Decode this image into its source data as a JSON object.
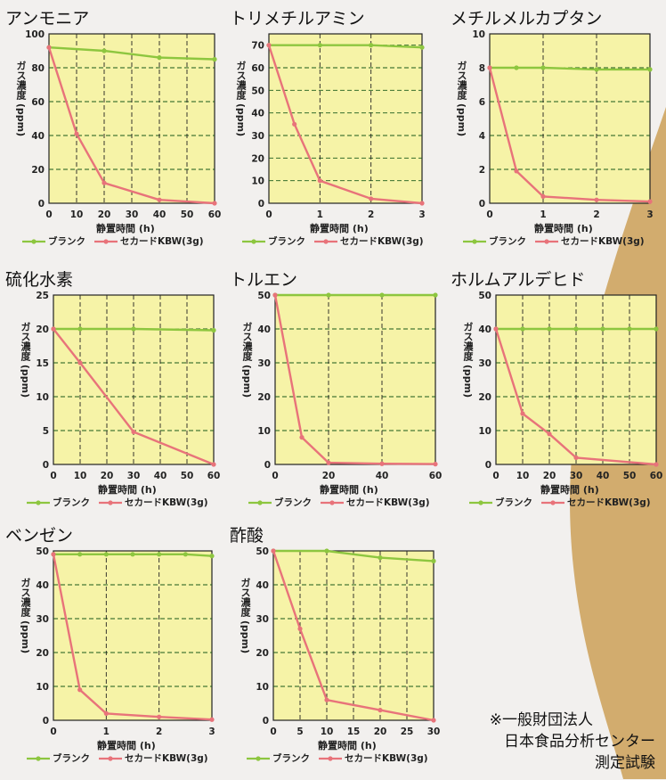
{
  "legend": {
    "blank": "ブランク",
    "product": "セカードKBW(3g)"
  },
  "colors": {
    "blank": "#8dc63f",
    "product": "#e8737a",
    "plot_bg": "#f6f3a7",
    "accent": "#d2ac6e"
  },
  "axis_labels": {
    "y": "ガス濃度 (ppm)",
    "x": "静置時間 (h)"
  },
  "note": {
    "line1": "※一般財団法人",
    "line2": "日本食品分析センター",
    "line3": "測定試験"
  },
  "chart_data": [
    {
      "type": "line",
      "title": "アンモニア",
      "xlabel": "静置時間 (h)",
      "ylabel": "ガス濃度 (ppm)",
      "xticks": [
        0,
        10,
        20,
        30,
        40,
        50,
        60
      ],
      "yticks": [
        0,
        20,
        40,
        60,
        80,
        100
      ],
      "xlim": [
        0,
        60
      ],
      "ylim": [
        0,
        100
      ],
      "series": [
        {
          "name": "ブランク",
          "x": [
            0,
            20,
            40,
            60
          ],
          "y": [
            92,
            90,
            86,
            85
          ]
        },
        {
          "name": "セカードKBW(3g)",
          "x": [
            0,
            10,
            20,
            40,
            60
          ],
          "y": [
            92,
            41,
            12,
            2,
            0
          ]
        }
      ]
    },
    {
      "type": "line",
      "title": "トリメチルアミン",
      "xlabel": "静置時間 (h)",
      "ylabel": "ガス濃度 (ppm)",
      "xticks": [
        0,
        1,
        2,
        3
      ],
      "yticks": [
        0,
        10,
        20,
        30,
        40,
        50,
        60,
        70
      ],
      "xlim": [
        0,
        3
      ],
      "ylim": [
        0,
        75
      ],
      "series": [
        {
          "name": "ブランク",
          "x": [
            0,
            1,
            2,
            3
          ],
          "y": [
            70,
            70,
            70,
            69
          ]
        },
        {
          "name": "セカードKBW(3g)",
          "x": [
            0,
            0.5,
            1,
            2,
            3
          ],
          "y": [
            70,
            35,
            10,
            2,
            0
          ]
        }
      ]
    },
    {
      "type": "line",
      "title": "メチルメルカプタン",
      "xlabel": "静置時間 (h)",
      "ylabel": "ガス濃度 (ppm)",
      "xticks": [
        0,
        1,
        2,
        3
      ],
      "yticks": [
        0,
        2,
        4,
        6,
        8,
        10
      ],
      "xlim": [
        0,
        3
      ],
      "ylim": [
        0,
        10
      ],
      "series": [
        {
          "name": "ブランク",
          "x": [
            0,
            0.5,
            1,
            2,
            3
          ],
          "y": [
            8,
            8,
            8,
            7.9,
            7.9
          ]
        },
        {
          "name": "セカードKBW(3g)",
          "x": [
            0,
            0.5,
            1,
            2,
            3
          ],
          "y": [
            8,
            1.9,
            0.4,
            0.2,
            0.1
          ]
        }
      ]
    },
    {
      "type": "line",
      "title": "硫化水素",
      "xlabel": "静置時間 (h)",
      "ylabel": "ガス濃度 (ppm)",
      "xticks": [
        0,
        10,
        20,
        30,
        40,
        50,
        60
      ],
      "yticks": [
        0,
        5,
        10,
        15,
        20,
        25
      ],
      "xlim": [
        0,
        60
      ],
      "ylim": [
        0,
        25
      ],
      "series": [
        {
          "name": "ブランク",
          "x": [
            0,
            10,
            30,
            60
          ],
          "y": [
            20,
            20,
            20,
            19.8
          ]
        },
        {
          "name": "セカードKBW(3g)",
          "x": [
            0,
            10,
            30,
            60
          ],
          "y": [
            20,
            15,
            4.8,
            0
          ]
        }
      ]
    },
    {
      "type": "line",
      "title": "トルエン",
      "xlabel": "静置時間 (h)",
      "ylabel": "ガス濃度 (ppm)",
      "xticks": [
        0,
        20,
        40,
        60
      ],
      "yticks": [
        0,
        10,
        20,
        30,
        40,
        50
      ],
      "xlim": [
        0,
        60
      ],
      "ylim": [
        0,
        50
      ],
      "series": [
        {
          "name": "ブランク",
          "x": [
            0,
            20,
            40,
            60
          ],
          "y": [
            50,
            50,
            50,
            50
          ]
        },
        {
          "name": "セカードKBW(3g)",
          "x": [
            0,
            10,
            20,
            40,
            60
          ],
          "y": [
            50,
            8,
            0.5,
            0.2,
            0.1
          ]
        }
      ]
    },
    {
      "type": "line",
      "title": "ホルムアルデヒド",
      "xlabel": "静置時間 (h)",
      "ylabel": "ガス濃度 (ppm)",
      "xticks": [
        0,
        10,
        20,
        30,
        40,
        50,
        60
      ],
      "yticks": [
        0,
        10,
        20,
        30,
        40,
        50
      ],
      "xlim": [
        0,
        60
      ],
      "ylim": [
        0,
        50
      ],
      "series": [
        {
          "name": "ブランク",
          "x": [
            0,
            10,
            20,
            30,
            40,
            50,
            60
          ],
          "y": [
            40,
            40,
            40,
            40,
            40,
            40,
            40
          ]
        },
        {
          "name": "セカードKBW(3g)",
          "x": [
            0,
            10,
            20,
            30,
            60
          ],
          "y": [
            40,
            15,
            9,
            2,
            0
          ]
        }
      ]
    },
    {
      "type": "line",
      "title": "ベンゼン",
      "xlabel": "静置時間 (h)",
      "ylabel": "ガス濃度 (ppm)",
      "xticks": [
        0,
        1,
        2,
        3
      ],
      "yticks": [
        0,
        10,
        20,
        30,
        40,
        50
      ],
      "xlim": [
        0,
        3
      ],
      "ylim": [
        0,
        50
      ],
      "series": [
        {
          "name": "ブランク",
          "x": [
            0,
            0.5,
            1,
            1.5,
            2,
            2.5,
            3
          ],
          "y": [
            49,
            49,
            49,
            49,
            49,
            49,
            48.5
          ]
        },
        {
          "name": "セカードKBW(3g)",
          "x": [
            0,
            0.5,
            1,
            2,
            3
          ],
          "y": [
            49,
            9,
            2,
            1,
            0.2
          ]
        }
      ]
    },
    {
      "type": "line",
      "title": "酢酸",
      "xlabel": "静置時間 (h)",
      "ylabel": "ガス濃度 (ppm)",
      "xticks": [
        0,
        5,
        10,
        15,
        20,
        25,
        30
      ],
      "yticks": [
        0,
        10,
        20,
        30,
        40,
        50
      ],
      "xlim": [
        0,
        30
      ],
      "ylim": [
        0,
        50
      ],
      "series": [
        {
          "name": "ブランク",
          "x": [
            0,
            10,
            20,
            30
          ],
          "y": [
            50,
            50,
            48,
            47
          ]
        },
        {
          "name": "セカードKBW(3g)",
          "x": [
            0,
            5,
            10,
            20,
            30
          ],
          "y": [
            50,
            27,
            6,
            3,
            0
          ]
        }
      ]
    }
  ]
}
